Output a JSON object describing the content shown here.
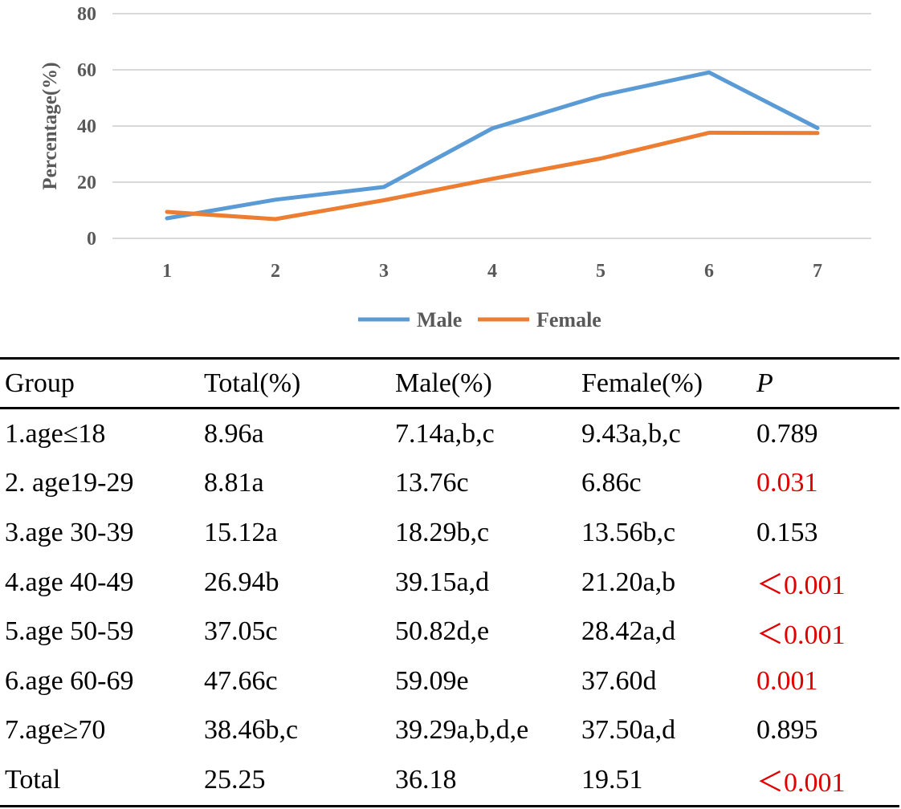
{
  "chart_data": {
    "type": "line",
    "categories": [
      "1",
      "2",
      "3",
      "4",
      "5",
      "6",
      "7"
    ],
    "series": [
      {
        "name": "Male",
        "color": "#5b9bd5",
        "values": [
          7.14,
          13.76,
          18.29,
          39.15,
          50.82,
          59.09,
          39.29
        ]
      },
      {
        "name": "Female",
        "color": "#ed7d31",
        "values": [
          9.43,
          6.86,
          13.56,
          21.2,
          28.42,
          37.6,
          37.5
        ]
      }
    ],
    "ylabel": "Percentage(%)",
    "xlabel": "",
    "ylim": [
      0,
      80
    ],
    "yticks": [
      "0",
      "20",
      "40",
      "60",
      "80"
    ],
    "grid": true,
    "legend": "bottom"
  },
  "table": {
    "headers": [
      "Group",
      "Total(%)",
      "Male(%)",
      "Female(%)",
      "P"
    ],
    "rows": [
      {
        "group": "1.age≤18",
        "total": "8.96a",
        "male": "7.14a,b,c",
        "female": "9.43a,b,c",
        "p": "0.789",
        "significant": false
      },
      {
        "group": "2. age19-29",
        "total": "8.81a",
        "male": "13.76c",
        "female": "6.86c",
        "p": "0.031",
        "significant": true
      },
      {
        "group": "3.age 30-39",
        "total": "15.12a",
        "male": "18.29b,c",
        "female": "13.56b,c",
        "p": "0.153",
        "significant": false
      },
      {
        "group": "4.age 40-49",
        "total": "26.94b",
        "male": "39.15a,d",
        "female": "21.20a,b",
        "p": "＜0.001",
        "significant": true
      },
      {
        "group": "5.age 50-59",
        "total": "37.05c",
        "male": "50.82d,e",
        "female": "28.42a,d",
        "p": "＜0.001",
        "significant": true
      },
      {
        "group": "6.age 60-69",
        "total": "47.66c",
        "male": "59.09e",
        "female": "37.60d",
        "p": "0.001",
        "significant": true
      },
      {
        "group": "7.age≥70",
        "total": "38.46b,c",
        "male": "39.29a,b,d,e",
        "female": "37.50a,d",
        "p": "0.895",
        "significant": false
      },
      {
        "group": "Total",
        "total": "25.25",
        "male": "36.18",
        "female": "19.51",
        "p": "＜0.001",
        "significant": true
      }
    ]
  }
}
